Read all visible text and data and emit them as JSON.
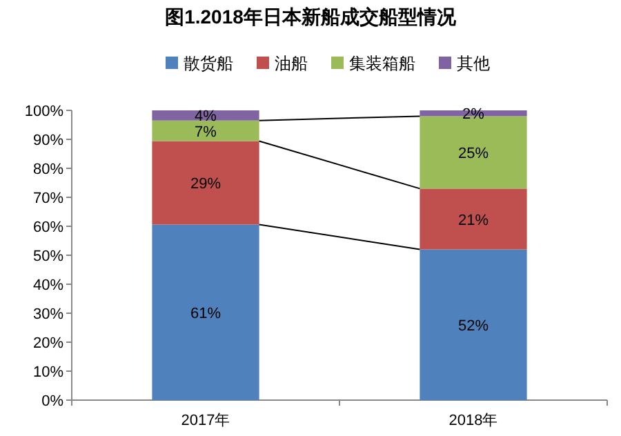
{
  "chart_data": {
    "type": "bar",
    "title": "图1.2018年日本新船成交船型情况",
    "categories": [
      "2017年",
      "2018年"
    ],
    "stacked": true,
    "series": [
      {
        "name": "散货船",
        "color": "#4f81bd",
        "values": [
          60.6,
          52
        ],
        "value_labels": [
          "61%",
          "52%"
        ]
      },
      {
        "name": "油船",
        "color": "#c0504d",
        "values": [
          28.8,
          21
        ],
        "value_labels": [
          "29%",
          "21%"
        ]
      },
      {
        "name": "集装箱船",
        "color": "#9bbb59",
        "values": [
          7.1,
          25
        ],
        "value_labels": [
          "7%",
          "25%"
        ]
      },
      {
        "name": "其他",
        "color": "#8064a2",
        "values": [
          3.5,
          2
        ],
        "value_labels": [
          "4%",
          "2%"
        ]
      }
    ],
    "ylim": [
      0,
      100
    ],
    "yticks": [
      {
        "value": 0,
        "label": "0%"
      },
      {
        "value": 10,
        "label": "10%"
      },
      {
        "value": 20,
        "label": "20%"
      },
      {
        "value": 30,
        "label": "30%"
      },
      {
        "value": 40,
        "label": "40%"
      },
      {
        "value": 50,
        "label": "50%"
      },
      {
        "value": 60,
        "label": "60%"
      },
      {
        "value": 70,
        "label": "70%"
      },
      {
        "value": 80,
        "label": "80%"
      },
      {
        "value": 90,
        "label": "90%"
      },
      {
        "value": 100,
        "label": "100%"
      }
    ],
    "grid": false,
    "legend": "top"
  }
}
